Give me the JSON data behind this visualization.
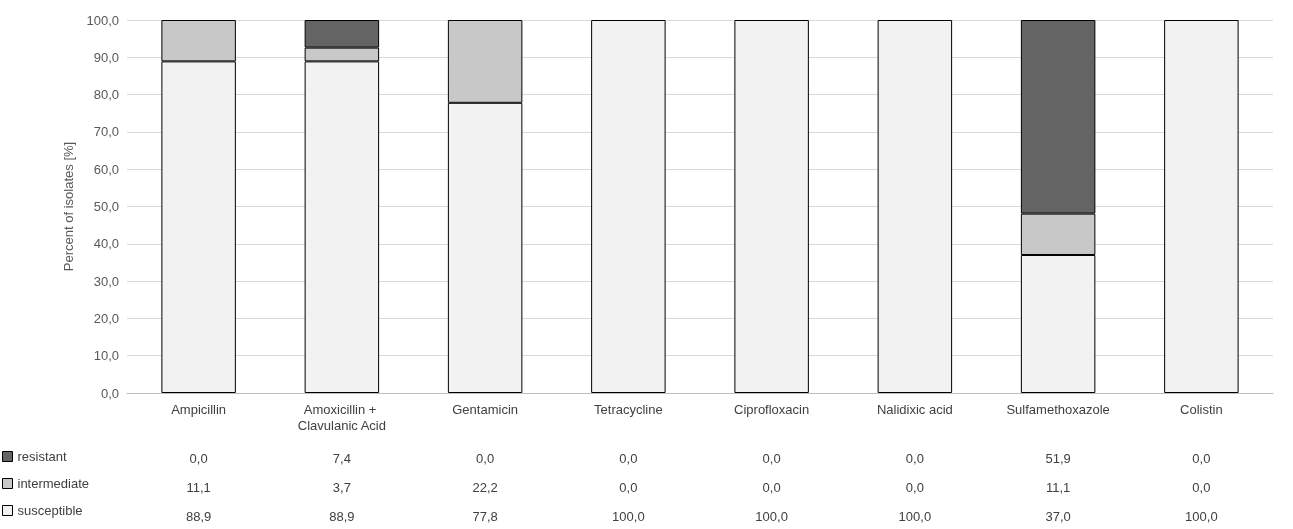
{
  "chart_data": {
    "type": "bar",
    "stacked": true,
    "ylabel": "Percent of isolates [%]",
    "categories": [
      "Ampicillin",
      "Amoxicillin + Clavulanic Acid",
      "Gentamicin",
      "Tetracycline",
      "Ciprofloxacin",
      "Nalidixic acid",
      "Sulfamethoxazole",
      "Colistin"
    ],
    "series": [
      {
        "name": "susceptible",
        "color": "#f2f2f2",
        "values": [
          88.9,
          88.9,
          77.8,
          100,
          100,
          100,
          37.0,
          100
        ],
        "value_labels": [
          "88,9",
          "88,9",
          "77,8",
          "100,0",
          "100,0",
          "100,0",
          "37,0",
          "100,0"
        ]
      },
      {
        "name": "intermediate",
        "color": "#c8c8c8",
        "values": [
          11.1,
          3.7,
          22.2,
          0,
          0,
          0,
          11.1,
          0
        ],
        "value_labels": [
          "11,1",
          "3,7",
          "22,2",
          "0,0",
          "0,0",
          "0,0",
          "11,1",
          "0,0"
        ]
      },
      {
        "name": "resistant",
        "color": "#646464",
        "values": [
          0,
          7.4,
          0,
          0,
          0,
          0,
          51.9,
          0
        ],
        "value_labels": [
          "0,0",
          "7,4",
          "0,0",
          "0,0",
          "0,0",
          "0,0",
          "51,9",
          "0,0"
        ]
      }
    ],
    "ylim": [
      0,
      100
    ],
    "yticks": [
      {
        "value": 0,
        "label": "0,0"
      },
      {
        "value": 10,
        "label": "10,0"
      },
      {
        "value": 20,
        "label": "20,0"
      },
      {
        "value": 30,
        "label": "30,0"
      },
      {
        "value": 40,
        "label": "40,0"
      },
      {
        "value": 50,
        "label": "50,0"
      },
      {
        "value": 60,
        "label": "60,0"
      },
      {
        "value": 70,
        "label": "70,0"
      },
      {
        "value": 80,
        "label": "80,0"
      },
      {
        "value": 90,
        "label": "90,0"
      },
      {
        "value": 100,
        "label": "100,0"
      }
    ],
    "grid": "y",
    "legend": "bottom left"
  }
}
